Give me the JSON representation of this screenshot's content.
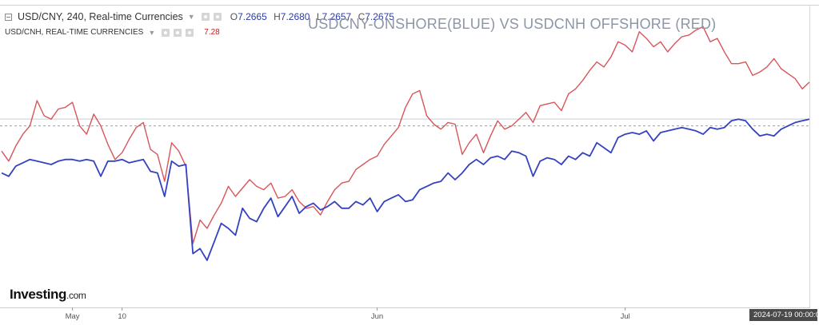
{
  "legend": {
    "symbol_line": "USD/CNY, 240, Real-time Currencies",
    "ohlc": [
      {
        "key": "O",
        "value": "7.2665"
      },
      {
        "key": "H",
        "value": "7.2680"
      },
      {
        "key": "L",
        "value": "7.2657"
      },
      {
        "key": "C",
        "value": "7.2675"
      }
    ],
    "compare_line": "USD/CNH, REAL-TIME CURRENCIES",
    "compare_value": "7.28"
  },
  "title": "USDCNY-ONSHORE(BLUE) VS USDCNH OFFSHORE (RED)",
  "logo": {
    "text": "Investing",
    "suffix": ".com"
  },
  "crosshair_time": "2024-07-19 00:00:00",
  "colors": {
    "usdcny": "#3442c2",
    "usdcnh": "#d9555a",
    "axis_text": "#555555",
    "title": "#8c96a6"
  },
  "chart_data": {
    "type": "line",
    "title": "USDCNY-ONSHORE(BLUE) VS USDCNH OFFSHORE (RED)",
    "xlabel": "",
    "ylabel": "",
    "x_tick_labels": [
      {
        "label": "May",
        "x": 10
      },
      {
        "label": "10",
        "x": 17
      },
      {
        "label": "Jun",
        "x": 53
      },
      {
        "label": "Jul",
        "x": 88
      }
    ],
    "x_range": [
      0,
      114
    ],
    "y_range": [
      7.16,
      7.34
    ],
    "grid": false,
    "legend": "top-left",
    "series": [
      {
        "name": "USD/CNY",
        "values": [
          7.24,
          7.238,
          7.244,
          7.246,
          7.248,
          7.247,
          7.246,
          7.245,
          7.247,
          7.248,
          7.248,
          7.247,
          7.248,
          7.247,
          7.238,
          7.247,
          7.247,
          7.248,
          7.246,
          7.247,
          7.248,
          7.241,
          7.24,
          7.226,
          7.247,
          7.244,
          7.245,
          7.192,
          7.195,
          7.188,
          7.199,
          7.21,
          7.207,
          7.203,
          7.219,
          7.213,
          7.211,
          7.219,
          7.225,
          7.214,
          7.22,
          7.226,
          7.216,
          7.22,
          7.222,
          7.218,
          7.22,
          7.223,
          7.219,
          7.219,
          7.223,
          7.221,
          7.225,
          7.217,
          7.223,
          7.225,
          7.227,
          7.223,
          7.224,
          7.23,
          7.232,
          7.234,
          7.235,
          7.24,
          7.236,
          7.24,
          7.245,
          7.248,
          7.245,
          7.249,
          7.25,
          7.248,
          7.253,
          7.252,
          7.25,
          7.238,
          7.247,
          7.249,
          7.248,
          7.245,
          7.25,
          7.248,
          7.252,
          7.25,
          7.258,
          7.255,
          7.252,
          7.261,
          7.263,
          7.264,
          7.263,
          7.265,
          7.259,
          7.264,
          7.265,
          7.266,
          7.267,
          7.266,
          7.265,
          7.263,
          7.267,
          7.266,
          7.267,
          7.271,
          7.272,
          7.271,
          7.266,
          7.262,
          7.263,
          7.262,
          7.266,
          7.268,
          7.27,
          7.271,
          7.272
        ]
      },
      {
        "name": "USD/CNH",
        "values": [
          7.253,
          7.247,
          7.256,
          7.263,
          7.268,
          7.283,
          7.274,
          7.272,
          7.278,
          7.279,
          7.282,
          7.268,
          7.263,
          7.275,
          7.268,
          7.257,
          7.248,
          7.252,
          7.26,
          7.267,
          7.27,
          7.254,
          7.251,
          7.235,
          7.258,
          7.253,
          7.244,
          7.198,
          7.212,
          7.207,
          7.215,
          7.222,
          7.232,
          7.226,
          7.231,
          7.236,
          7.232,
          7.23,
          7.234,
          7.225,
          7.226,
          7.23,
          7.223,
          7.219,
          7.22,
          7.215,
          7.223,
          7.23,
          7.234,
          7.235,
          7.242,
          7.245,
          7.248,
          7.25,
          7.257,
          7.262,
          7.267,
          7.279,
          7.287,
          7.289,
          7.274,
          7.269,
          7.266,
          7.27,
          7.269,
          7.251,
          7.258,
          7.263,
          7.252,
          7.262,
          7.271,
          7.266,
          7.268,
          7.272,
          7.276,
          7.27,
          7.28,
          7.281,
          7.282,
          7.277,
          7.287,
          7.29,
          7.295,
          7.301,
          7.306,
          7.303,
          7.309,
          7.318,
          7.316,
          7.312,
          7.324,
          7.32,
          7.315,
          7.318,
          7.312,
          7.317,
          7.321,
          7.322,
          7.325,
          7.327,
          7.318,
          7.32,
          7.312,
          7.305,
          7.305,
          7.306,
          7.298,
          7.3,
          7.303,
          7.308,
          7.302,
          7.299,
          7.296,
          7.29,
          7.294
        ]
      }
    ]
  }
}
